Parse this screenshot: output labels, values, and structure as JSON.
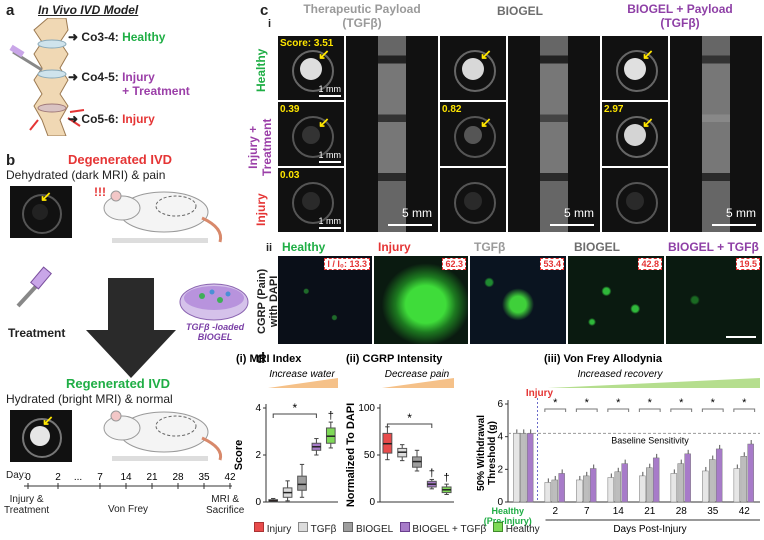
{
  "panel_a": {
    "letter": "a",
    "title": "In Vivo IVD Model",
    "levels": [
      {
        "code": "Co3-4:",
        "status": "Healthy",
        "color": "#1fae45"
      },
      {
        "code": "Co4-5:",
        "status": "Injury\n+ Treatment",
        "color": "#9b3fa8"
      },
      {
        "code": "Co5-6:",
        "status": "Injury",
        "color": "#e53535"
      }
    ]
  },
  "panel_b": {
    "letter": "b",
    "degenerated_title": "Degenerated IVD",
    "degenerated_desc": "Dehydrated (dark MRI) & pain",
    "treatment_label": "Treatment",
    "biogel_label": "TGFβ -loaded\nBIOGEL",
    "regenerated_title": "Regenerated IVD",
    "regenerated_desc": "Hydrated (bright MRI) & normal",
    "timeline_day_label": "Day:",
    "timeline_days": [
      "0",
      "2",
      "7",
      "14",
      "21",
      "28",
      "35",
      "42"
    ],
    "timeline_events": [
      "Injury &\nTreatment",
      "Von Frey",
      "MRI &\nSacrifice"
    ]
  },
  "panel_c": {
    "letter": "c",
    "sub_i": "i",
    "sub_ii": "ii",
    "columns": [
      {
        "title": "Therapeutic Payload\n(TGFβ)",
        "color": "#9a9a9a"
      },
      {
        "title": "BIOGEL",
        "color": "#6d6d6d"
      },
      {
        "title": "BIOGEL + Payload\n(TGFβ)",
        "color": "#8e3fa6"
      }
    ],
    "row_labels": [
      {
        "text": "Healthy",
        "color": "#1fae45"
      },
      {
        "text": "Injury +\nTreatment",
        "color": "#9b3fa8"
      },
      {
        "text": "Injury",
        "color": "#e53535"
      }
    ],
    "scores": [
      "Score: 3.51",
      "0.39",
      "0.03",
      "0.82",
      "2.97"
    ],
    "scale_1mm": "1 mm",
    "scale_5mm": "5 mm",
    "cgrp_axis_label": "CGRP (Pain)\nwith DAPI",
    "cgrp_panels": [
      {
        "title": "Healthy",
        "color": "#1fae45",
        "value": "I / I₀: 13.3"
      },
      {
        "title": "Injury",
        "color": "#e53535",
        "value": "62.3"
      },
      {
        "title": "TGFβ",
        "color": "#9a9a9a",
        "value": "53.4"
      },
      {
        "title": "BIOGEL",
        "color": "#6d6d6d",
        "value": "42.8"
      },
      {
        "title": "BIOGEL + TGFβ",
        "color": "#8e3fa6",
        "value": "19.5"
      }
    ]
  },
  "panel_d": {
    "letter": "d",
    "legend": [
      {
        "label": "Injury",
        "color": "#e84b4b"
      },
      {
        "label": "TGFβ",
        "color": "#dcdcdc"
      },
      {
        "label": "BIOGEL",
        "color": "#9e9e9e"
      },
      {
        "label": "BIOGEL + TGFβ",
        "color": "#a77bc9"
      },
      {
        "label": "Healthy",
        "color": "#7ed957"
      }
    ]
  },
  "chart_data": [
    {
      "type": "box",
      "title": "(i) MRI Index",
      "subtitle": "Increase water",
      "ylabel": "Score",
      "ylim": [
        0,
        4
      ],
      "yticks": [
        0,
        2,
        4
      ],
      "categories": [
        "Injury",
        "TGFβ",
        "BIOGEL",
        "BIOGEL + TGFβ",
        "Healthy"
      ],
      "colors": [
        "#e84b4b",
        "#dcdcdc",
        "#9e9e9e",
        "#a77bc9",
        "#7ed957"
      ],
      "boxes": [
        {
          "min": 0.0,
          "q1": 0.0,
          "median": 0.05,
          "q3": 0.1,
          "max": 0.15
        },
        {
          "min": 0.05,
          "q1": 0.2,
          "median": 0.4,
          "q3": 0.6,
          "max": 0.9
        },
        {
          "min": 0.2,
          "q1": 0.5,
          "median": 0.75,
          "q3": 1.1,
          "max": 1.6
        },
        {
          "min": 2.0,
          "q1": 2.2,
          "median": 2.35,
          "q3": 2.5,
          "max": 2.7
        },
        {
          "min": 2.3,
          "q1": 2.5,
          "median": 2.8,
          "q3": 3.15,
          "max": 3.4
        }
      ],
      "annotations": [
        "*",
        "†"
      ]
    },
    {
      "type": "box",
      "title": "(ii) CGRP Intensity",
      "subtitle": "Decrease pain",
      "ylabel": "Normalized To DAPI",
      "ylim": [
        0,
        100
      ],
      "yticks": [
        0,
        50,
        100
      ],
      "categories": [
        "Injury",
        "TGFβ",
        "BIOGEL",
        "BIOGEL + TGFβ",
        "Healthy"
      ],
      "colors": [
        "#e84b4b",
        "#dcdcdc",
        "#9e9e9e",
        "#a77bc9",
        "#7ed957"
      ],
      "boxes": [
        {
          "min": 45,
          "q1": 52,
          "median": 62,
          "q3": 73,
          "max": 80
        },
        {
          "min": 44,
          "q1": 48,
          "median": 53,
          "q3": 57,
          "max": 61
        },
        {
          "min": 33,
          "q1": 37,
          "median": 43,
          "q3": 48,
          "max": 55
        },
        {
          "min": 14,
          "q1": 16,
          "median": 19,
          "q3": 22,
          "max": 24
        },
        {
          "min": 8,
          "q1": 10,
          "median": 13,
          "q3": 16,
          "max": 19
        }
      ],
      "annotations": [
        "*",
        "†",
        "†"
      ]
    },
    {
      "type": "bar",
      "title": "(iii) Von Frey Allodynia",
      "subtitle": "Increased recovery",
      "ylabel": "50% Withdrawal\nThreshold (g)",
      "xlabel": "Days Post-Injury",
      "injury_label": "Injury",
      "baseline_label": "Baseline Sensitivity",
      "healthy_label": "Healthy\n(Pre-Injury)",
      "ylim": [
        0,
        6
      ],
      "yticks": [
        0,
        2,
        4,
        6
      ],
      "categories": [
        "Healthy\n(Pre-Injury)",
        "2",
        "7",
        "14",
        "21",
        "28",
        "35",
        "42"
      ],
      "series": [
        {
          "name": "TGFβ",
          "color": "#e6e6e6",
          "values": [
            4.2,
            1.2,
            1.35,
            1.5,
            1.6,
            1.75,
            1.9,
            2.05
          ]
        },
        {
          "name": "BIOGEL",
          "color": "#bdbdbd",
          "values": [
            4.2,
            1.35,
            1.6,
            1.85,
            2.1,
            2.35,
            2.6,
            2.8
          ]
        },
        {
          "name": "BIOGEL + TGFβ",
          "color": "#a77bc9",
          "values": [
            4.2,
            1.75,
            2.05,
            2.35,
            2.7,
            2.95,
            3.25,
            3.55
          ]
        }
      ],
      "annotations": [
        "*",
        "*",
        "*",
        "*",
        "*",
        "*",
        "*"
      ]
    }
  ]
}
